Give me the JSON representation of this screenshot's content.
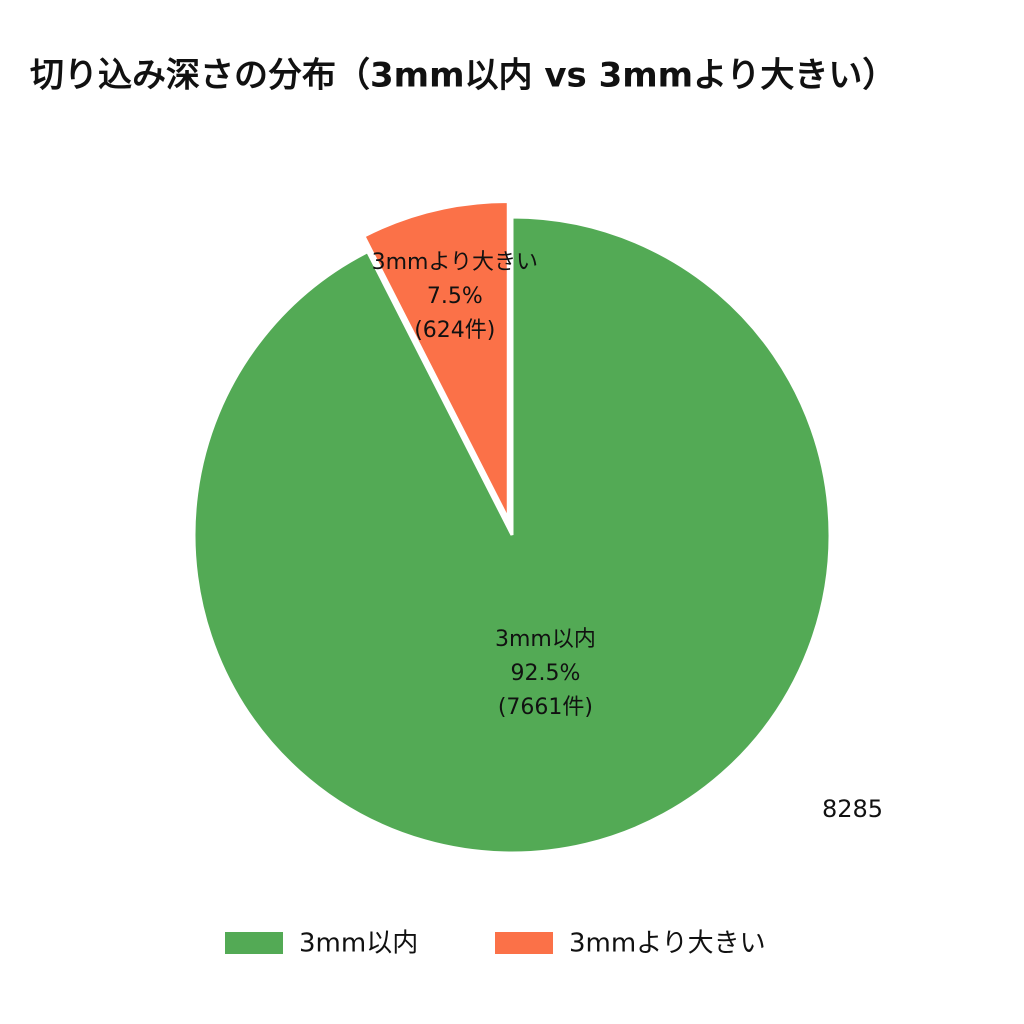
{
  "chart_data": {
    "type": "pie",
    "title": "切り込み深さの分布（3mm以内 vs 3mmより大きい）",
    "categories": [
      "3mm以内",
      "3mmより大きい"
    ],
    "values": [
      92.5,
      7.5
    ],
    "value_labels": [
      "92.5%",
      "7.5%"
    ],
    "counts": [
      7661,
      624
    ],
    "count_labels": [
      "(7661件)",
      "(624件)"
    ],
    "colors": [
      "#53aa55",
      "#fb7148"
    ],
    "annotation": 8285,
    "legend": "bottom"
  }
}
